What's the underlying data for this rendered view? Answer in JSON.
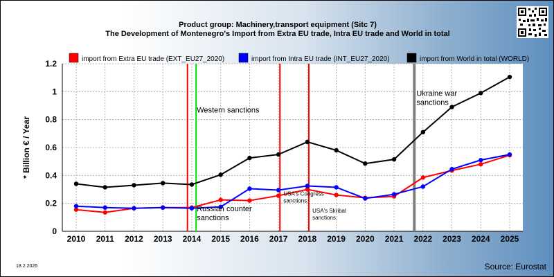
{
  "header": {
    "title_line1": "Product group: Machinery,transport equipment (Sitc 7)",
    "title_line2": "The Development of Montenegro's Import from Extra EU trade, Intra EU trade and World in total"
  },
  "footer": {
    "date": "18.2.2026",
    "source": "Source: Eurostat"
  },
  "qr": {
    "icon": "qr-code-icon"
  },
  "chart_data": {
    "type": "line",
    "ylabel": "* Billion € / Year",
    "xlabel": "",
    "ylim": [
      0,
      1.2
    ],
    "yticks": [
      0,
      0.2,
      0.4,
      0.6,
      0.8,
      1,
      1.2
    ],
    "ytick_labels": [
      "0",
      "0.2",
      "0.4",
      "0.6",
      "0.8",
      "1",
      "1.2"
    ],
    "x": [
      2010,
      2011,
      2012,
      2013,
      2014,
      2015,
      2016,
      2017,
      2018,
      2019,
      2020,
      2021,
      2022,
      2023,
      2024,
      2025
    ],
    "x_labels": [
      "2010",
      "2011",
      "2012",
      "2013",
      "2014",
      "2015",
      "2016",
      "2017",
      "2018",
      "2019",
      "2020",
      "2021",
      "2022",
      "2023",
      "2024",
      "2025"
    ],
    "legend_position": "top",
    "grid": true,
    "series": [
      {
        "name": "import from Extra EU trade (EXT_EU27_2020)",
        "color": "#ff0000",
        "values": [
          0.155,
          0.135,
          0.165,
          0.17,
          0.17,
          0.225,
          0.22,
          0.255,
          0.3,
          0.26,
          0.24,
          0.25,
          0.385,
          0.435,
          0.48,
          0.545
        ]
      },
      {
        "name": "import from Intra EU trade (INT_EU27_2020)",
        "color": "#0000ff",
        "values": [
          0.18,
          0.17,
          0.165,
          0.17,
          0.165,
          0.175,
          0.305,
          0.295,
          0.325,
          0.315,
          0.235,
          0.265,
          0.32,
          0.445,
          0.51,
          0.55
        ]
      },
      {
        "name": "import from World in total (WORLD)",
        "color": "#000000",
        "values": [
          0.34,
          0.315,
          0.33,
          0.345,
          0.335,
          0.405,
          0.525,
          0.55,
          0.64,
          0.58,
          0.485,
          0.515,
          0.71,
          0.89,
          0.99,
          1.105
        ]
      }
    ],
    "events": [
      {
        "year": 2013.85,
        "color": "#ff0000"
      },
      {
        "year": 2014.15,
        "color": "#00e000"
      },
      {
        "year": 2017.05,
        "color": "#ff0000"
      },
      {
        "year": 2018.05,
        "color": "#ff0000"
      },
      {
        "year": 2021.7,
        "color": "#808080"
      }
    ],
    "annotations": [
      {
        "id": "western",
        "lines": [
          "Western sanctions"
        ],
        "year": 2014.15,
        "y": 0.85,
        "size": 11
      },
      {
        "id": "russian",
        "lines": [
          "Russian counter",
          "sanctions"
        ],
        "year": 2014.15,
        "y": 0.145,
        "size": 11
      },
      {
        "id": "congress",
        "lines": [
          "USA's Congress",
          "sanctions"
        ],
        "year": 2017.15,
        "y": 0.255,
        "size": 8
      },
      {
        "id": "skribal",
        "lines": [
          "USA's Skribal",
          "sanctions"
        ],
        "year": 2018.15,
        "y": 0.135,
        "size": 8
      },
      {
        "id": "ukraine",
        "lines": [
          "Ukraine war",
          "sanctions"
        ],
        "year": 2021.75,
        "y": 0.97,
        "size": 11
      }
    ]
  }
}
